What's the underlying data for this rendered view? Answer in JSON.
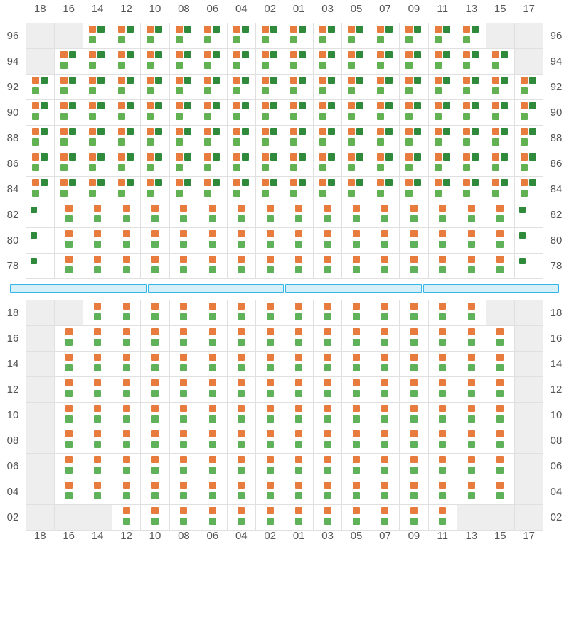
{
  "colors": {
    "orange": "#e87b3e",
    "dark_green": "#2f8a3c",
    "mid_green": "#62bažo54",
    "green": "#5fb259",
    "unavail_bg": "#eeeeee",
    "cell_border": "#e0e0e0",
    "label_text": "#555555",
    "divider_fill": "#d6f0fb",
    "divider_border": "#35b6e6"
  },
  "columns": [
    "18",
    "16",
    "14",
    "12",
    "10",
    "08",
    "06",
    "04",
    "02",
    "01",
    "03",
    "05",
    "07",
    "09",
    "11",
    "13",
    "15",
    "17"
  ],
  "top_section": {
    "rows": [
      "96",
      "94",
      "92",
      "90",
      "88",
      "86",
      "84",
      "82",
      "80",
      "78"
    ],
    "layout_comment": "cellType per [row][col]: U=unavail empty, A=2x2(orange+darkgreen+midgreen), B=stacked orange/green, E=edge single green",
    "cells": [
      [
        "U",
        "U",
        "A",
        "A",
        "A",
        "A",
        "A",
        "A",
        "A",
        "A",
        "A",
        "A",
        "A",
        "A",
        "A",
        "A",
        "U",
        "U"
      ],
      [
        "U",
        "A",
        "A",
        "A",
        "A",
        "A",
        "A",
        "A",
        "A",
        "A",
        "A",
        "A",
        "A",
        "A",
        "A",
        "A",
        "A",
        "U"
      ],
      [
        "A",
        "A",
        "A",
        "A",
        "A",
        "A",
        "A",
        "A",
        "A",
        "A",
        "A",
        "A",
        "A",
        "A",
        "A",
        "A",
        "A",
        "A"
      ],
      [
        "A",
        "A",
        "A",
        "A",
        "A",
        "A",
        "A",
        "A",
        "A",
        "A",
        "A",
        "A",
        "A",
        "A",
        "A",
        "A",
        "A",
        "A"
      ],
      [
        "A",
        "A",
        "A",
        "A",
        "A",
        "A",
        "A",
        "A",
        "A",
        "A",
        "A",
        "A",
        "A",
        "A",
        "A",
        "A",
        "A",
        "A"
      ],
      [
        "A",
        "A",
        "A",
        "A",
        "A",
        "A",
        "A",
        "A",
        "A",
        "A",
        "A",
        "A",
        "A",
        "A",
        "A",
        "A",
        "A",
        "A"
      ],
      [
        "A",
        "A",
        "A",
        "A",
        "A",
        "A",
        "A",
        "A",
        "A",
        "A",
        "A",
        "A",
        "A",
        "A",
        "A",
        "A",
        "A",
        "A"
      ],
      [
        "E",
        "B",
        "B",
        "B",
        "B",
        "B",
        "B",
        "B",
        "B",
        "B",
        "B",
        "B",
        "B",
        "B",
        "B",
        "B",
        "B",
        "E"
      ],
      [
        "E",
        "B",
        "B",
        "B",
        "B",
        "B",
        "B",
        "B",
        "B",
        "B",
        "B",
        "B",
        "B",
        "B",
        "B",
        "B",
        "B",
        "E"
      ],
      [
        "E",
        "B",
        "B",
        "B",
        "B",
        "B",
        "B",
        "B",
        "B",
        "B",
        "B",
        "B",
        "B",
        "B",
        "B",
        "B",
        "B",
        "E"
      ]
    ]
  },
  "divider_segments": 4,
  "bottom_section": {
    "rows": [
      "18",
      "16",
      "14",
      "12",
      "10",
      "08",
      "06",
      "04",
      "02"
    ],
    "cells": [
      [
        "U",
        "U",
        "B",
        "B",
        "B",
        "B",
        "B",
        "B",
        "B",
        "B",
        "B",
        "B",
        "B",
        "B",
        "B",
        "B",
        "U",
        "U"
      ],
      [
        "U",
        "B",
        "B",
        "B",
        "B",
        "B",
        "B",
        "B",
        "B",
        "B",
        "B",
        "B",
        "B",
        "B",
        "B",
        "B",
        "B",
        "U"
      ],
      [
        "U",
        "B",
        "B",
        "B",
        "B",
        "B",
        "B",
        "B",
        "B",
        "B",
        "B",
        "B",
        "B",
        "B",
        "B",
        "B",
        "B",
        "U"
      ],
      [
        "U",
        "B",
        "B",
        "B",
        "B",
        "B",
        "B",
        "B",
        "B",
        "B",
        "B",
        "B",
        "B",
        "B",
        "B",
        "B",
        "B",
        "U"
      ],
      [
        "U",
        "B",
        "B",
        "B",
        "B",
        "B",
        "B",
        "B",
        "B",
        "B",
        "B",
        "B",
        "B",
        "B",
        "B",
        "B",
        "B",
        "U"
      ],
      [
        "U",
        "B",
        "B",
        "B",
        "B",
        "B",
        "B",
        "B",
        "B",
        "B",
        "B",
        "B",
        "B",
        "B",
        "B",
        "B",
        "B",
        "U"
      ],
      [
        "U",
        "B",
        "B",
        "B",
        "B",
        "B",
        "B",
        "B",
        "B",
        "B",
        "B",
        "B",
        "B",
        "B",
        "B",
        "B",
        "B",
        "U"
      ],
      [
        "U",
        "B",
        "B",
        "B",
        "B",
        "B",
        "B",
        "B",
        "B",
        "B",
        "B",
        "B",
        "B",
        "B",
        "B",
        "B",
        "B",
        "U"
      ],
      [
        "U",
        "U",
        "U",
        "B",
        "B",
        "B",
        "B",
        "B",
        "B",
        "B",
        "B",
        "B",
        "B",
        "B",
        "B",
        "U",
        "U",
        "U"
      ]
    ]
  }
}
